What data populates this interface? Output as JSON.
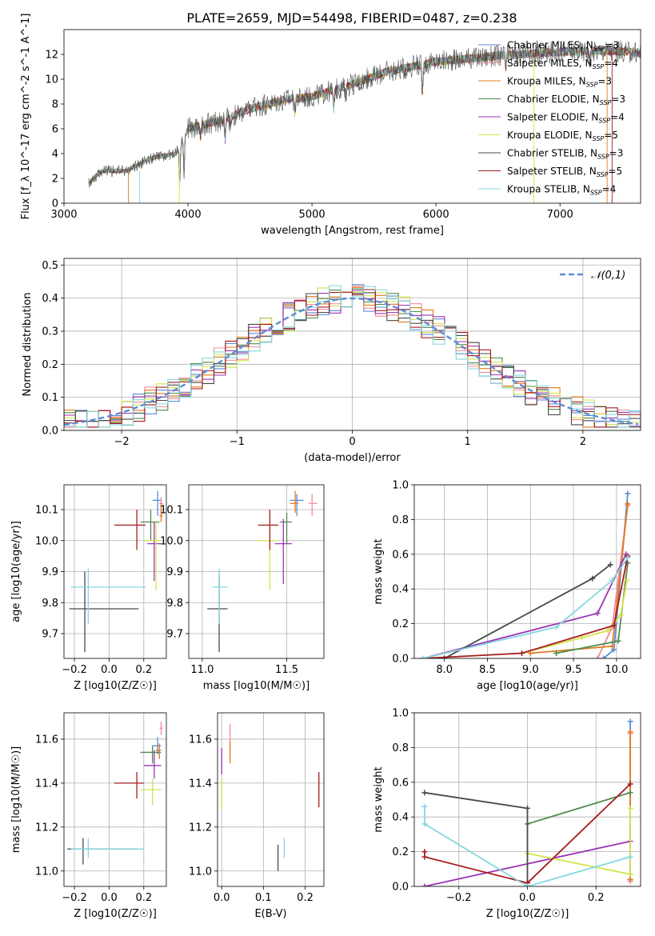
{
  "figure": {
    "title": "PLATE=2659, MJD=54498, FIBERID=0487, z=0.238"
  },
  "series_legend": [
    {
      "name": "Chabrier MILES, N_SSP=3",
      "color": "#5b8bd6"
    },
    {
      "name": "Salpeter MILES, N_SSP=4",
      "color": "#f08c9a"
    },
    {
      "name": "Kroupa MILES, N_SSP=3",
      "color": "#e07b1e"
    },
    {
      "name": "Chabrier ELODIE, N_SSP=3",
      "color": "#4f8a4f"
    },
    {
      "name": "Salpeter ELODIE, N_SSP=4",
      "color": "#9c35b5"
    },
    {
      "name": "Kroupa ELODIE, N_SSP=5",
      "color": "#d4e34c"
    },
    {
      "name": "Chabrier STELIB, N_SSP=3",
      "color": "#4a4a4a"
    },
    {
      "name": "Salpeter STELIB, N_SSP=5",
      "color": "#a61c1c"
    },
    {
      "name": "Kroupa STELIB, N_SSP=4",
      "color": "#86d7e0"
    }
  ],
  "chart_data": [
    {
      "id": "spectrum",
      "type": "line",
      "xlabel": "wavelength [Angstrom, rest frame]",
      "ylabel": "Flux [f_λ 10^-17 erg cm^-2 s^-1 A^-1]",
      "xlim": [
        3000,
        7650
      ],
      "ylim": [
        0,
        14
      ],
      "xticks": [
        "3000",
        "4000",
        "5000",
        "6000",
        "7000"
      ],
      "yticks": [
        "0",
        "2",
        "4",
        "6",
        "8",
        "10",
        "12"
      ],
      "legend_position": "upper right",
      "data_range": [
        3200,
        7700
      ],
      "continuum": [
        [
          3200,
          1.6
        ],
        [
          3300,
          2.6
        ],
        [
          3500,
          2.6
        ],
        [
          3700,
          3.6
        ],
        [
          3900,
          4.0
        ],
        [
          4000,
          6.0
        ],
        [
          4300,
          6.8
        ],
        [
          4500,
          7.6
        ],
        [
          4800,
          8.4
        ],
        [
          5000,
          8.6
        ],
        [
          5300,
          9.5
        ],
        [
          5600,
          10.6
        ],
        [
          6000,
          11.4
        ],
        [
          6500,
          11.9
        ],
        [
          7000,
          12.2
        ],
        [
          7400,
          12.3
        ],
        [
          7700,
          12.1
        ]
      ],
      "absorption_features": [
        [
          3933,
          3.2
        ],
        [
          3968,
          3.0
        ],
        [
          4102,
          1.0
        ],
        [
          4300,
          1.8
        ],
        [
          4340,
          1.0
        ],
        [
          4861,
          1.2
        ],
        [
          5175,
          1.6
        ],
        [
          5270,
          1.0
        ],
        [
          5890,
          2.4
        ],
        [
          6563,
          1.0
        ],
        [
          7240,
          1.0
        ]
      ]
    },
    {
      "id": "residuals",
      "type": "histogram",
      "xlabel": "(data-model)/error",
      "ylabel": "Normed distribution",
      "xlim": [
        -2.5,
        2.5
      ],
      "ylim": [
        0,
        0.52
      ],
      "xticks": [
        "−2",
        "−1",
        "0",
        "1",
        "2"
      ],
      "yticks": [
        "0.0",
        "0.1",
        "0.2",
        "0.3",
        "0.4",
        "0.5"
      ],
      "bin_width": 0.1,
      "reference_curve": {
        "name": "𝒩(0,1)",
        "color": "#5b8bd6"
      },
      "legend_position": "upper right"
    },
    {
      "id": "age_vs_Z",
      "type": "scatter",
      "xlabel": "Z [log10(Z/Z☉)]",
      "ylabel": "age  [log10(age/yr)]",
      "xlim": [
        -0.26,
        0.33
      ],
      "ylim": [
        9.62,
        10.18
      ],
      "xticks": [
        "−0.2",
        "0.0",
        "0.2"
      ],
      "yticks": [
        "9.7",
        "9.8",
        "9.9",
        "10.0",
        "10.1"
      ],
      "points": [
        {
          "x": 0.28,
          "y": 10.13,
          "xerr": [
            0.03,
            0.02
          ],
          "yerr": [
            0.05,
            0.03
          ]
        },
        {
          "x": 0.3,
          "y": 10.12,
          "xerr": [
            0.01,
            0.01
          ],
          "yerr": [
            0.03,
            0.02
          ]
        },
        {
          "x": 0.3,
          "y": 10.08,
          "xerr": [
            0.01,
            0.01
          ],
          "yerr": [
            0.02,
            0.04
          ]
        },
        {
          "x": 0.24,
          "y": 10.06,
          "xerr": [
            0.06,
            0.05
          ],
          "yerr": [
            0.06,
            0.04
          ]
        },
        {
          "x": 0.26,
          "y": 9.99,
          "xerr": [
            0.04,
            0.04
          ],
          "yerr": [
            0.12,
            0.07
          ]
        },
        {
          "x": 0.27,
          "y": 10.0,
          "xerr": [
            0.07,
            0.03
          ],
          "yerr": [
            0.16,
            0.06
          ]
        },
        {
          "x": -0.14,
          "y": 9.78,
          "xerr": [
            0.09,
            0.31
          ],
          "yerr": [
            0.14,
            0.12
          ]
        },
        {
          "x": 0.16,
          "y": 10.05,
          "xerr": [
            0.13,
            0.05
          ],
          "yerr": [
            0.08,
            0.05
          ]
        },
        {
          "x": -0.12,
          "y": 9.85,
          "xerr": [
            0.1,
            0.33
          ],
          "yerr": [
            0.12,
            0.06
          ]
        }
      ]
    },
    {
      "id": "age_vs_mass",
      "type": "scatter",
      "xlabel": "mass [log10(M/M☉)]",
      "ylabel": "",
      "xlim": [
        10.92,
        11.72
      ],
      "ylim": [
        9.62,
        10.18
      ],
      "xticks": [
        "11.0",
        "11.5"
      ],
      "yticks": [
        "9.7",
        "9.8",
        "9.9",
        "10.0",
        "10.1"
      ],
      "points": [
        {
          "x": 11.56,
          "y": 10.13,
          "xerr": [
            0.04,
            0.04
          ],
          "yerr": [
            0.05,
            0.02
          ]
        },
        {
          "x": 11.65,
          "y": 10.12,
          "xerr": [
            0.02,
            0.03
          ],
          "yerr": [
            0.04,
            0.03
          ]
        },
        {
          "x": 11.55,
          "y": 10.12,
          "xerr": [
            0.03,
            0.02
          ],
          "yerr": [
            0.03,
            0.04
          ]
        },
        {
          "x": 11.5,
          "y": 10.06,
          "xerr": [
            0.04,
            0.03
          ],
          "yerr": [
            0.07,
            0.03
          ]
        },
        {
          "x": 11.48,
          "y": 9.99,
          "xerr": [
            0.05,
            0.05
          ],
          "yerr": [
            0.13,
            0.08
          ]
        },
        {
          "x": 11.4,
          "y": 10.0,
          "xerr": [
            0.07,
            0.05
          ],
          "yerr": [
            0.16,
            0.08
          ]
        },
        {
          "x": 11.1,
          "y": 9.78,
          "xerr": [
            0.07,
            0.05
          ],
          "yerr": [
            0.14,
            0.11
          ]
        },
        {
          "x": 11.4,
          "y": 10.05,
          "xerr": [
            0.07,
            0.05
          ],
          "yerr": [
            0.08,
            0.05
          ]
        },
        {
          "x": 11.1,
          "y": 9.85,
          "xerr": [
            0.04,
            0.05
          ],
          "yerr": [
            0.12,
            0.06
          ]
        }
      ]
    },
    {
      "id": "mass_weight_vs_age",
      "type": "line",
      "xlabel": "age  [log10(age/yr)]",
      "ylabel": "mass weight",
      "xlim": [
        7.65,
        10.28
      ],
      "ylim": [
        0,
        1.0
      ],
      "xticks": [
        "8.0",
        "8.5",
        "9.0",
        "9.5",
        "10.0"
      ],
      "yticks": [
        "0.0",
        "0.2",
        "0.4",
        "0.6",
        "0.8",
        "1.0"
      ],
      "series": [
        {
          "values": [
            [
              9.85,
              0.0
            ],
            [
              9.97,
              0.05
            ],
            [
              10.13,
              0.95
            ]
          ]
        },
        {
          "values": [
            [
              9.78,
              0.0
            ],
            [
              9.95,
              0.18
            ],
            [
              10.13,
              0.88
            ]
          ]
        },
        {
          "values": [
            [
              9.0,
              0.03
            ],
            [
              9.95,
              0.07
            ],
            [
              10.13,
              0.89
            ]
          ]
        },
        {
          "values": [
            [
              9.3,
              0.03
            ],
            [
              10.02,
              0.1
            ],
            [
              10.13,
              0.55
            ]
          ]
        },
        {
          "values": [
            [
              7.75,
              0.0
            ],
            [
              9.78,
              0.26
            ],
            [
              10.11,
              0.6
            ]
          ]
        },
        {
          "values": [
            [
              8.9,
              0.03
            ],
            [
              9.6,
              0.12
            ],
            [
              9.9,
              0.16
            ],
            [
              10.05,
              0.25
            ],
            [
              10.12,
              0.45
            ]
          ]
        },
        {
          "values": [
            [
              8.0,
              0.0
            ],
            [
              9.72,
              0.46
            ],
            [
              9.93,
              0.54
            ]
          ]
        },
        {
          "values": [
            [
              7.75,
              0.0
            ],
            [
              8.9,
              0.03
            ],
            [
              9.97,
              0.19
            ],
            [
              10.13,
              0.59
            ]
          ]
        },
        {
          "values": [
            [
              7.75,
              0.0
            ],
            [
              9.3,
              0.18
            ],
            [
              9.95,
              0.45
            ],
            [
              10.13,
              0.58
            ]
          ]
        }
      ]
    },
    {
      "id": "mass_vs_Z",
      "type": "scatter",
      "xlabel": "Z [log10(Z/Z☉)]",
      "ylabel": "mass [log10(M/M☉)]",
      "xlim": [
        -0.26,
        0.33
      ],
      "ylim": [
        10.93,
        11.72
      ],
      "xticks": [
        "−0.2",
        "0.0",
        "0.2"
      ],
      "yticks": [
        "11.0",
        "11.2",
        "11.4",
        "11.6"
      ],
      "points": [
        {
          "x": 0.28,
          "y": 11.57,
          "xerr": [
            0.03,
            0.02
          ],
          "yerr": [
            0.04,
            0.04
          ]
        },
        {
          "x": 0.3,
          "y": 11.65,
          "xerr": [
            0.01,
            0.01
          ],
          "yerr": [
            0.03,
            0.03
          ]
        },
        {
          "x": 0.29,
          "y": 11.55,
          "xerr": [
            0.02,
            0.01
          ],
          "yerr": [
            0.04,
            0.03
          ]
        },
        {
          "x": 0.25,
          "y": 11.54,
          "xerr": [
            0.07,
            0.05
          ],
          "yerr": [
            0.05,
            0.03
          ]
        },
        {
          "x": 0.26,
          "y": 11.48,
          "xerr": [
            0.06,
            0.04
          ],
          "yerr": [
            0.06,
            0.07
          ]
        },
        {
          "x": 0.25,
          "y": 11.37,
          "xerr": [
            0.07,
            0.05
          ],
          "yerr": [
            0.07,
            0.05
          ]
        },
        {
          "x": -0.15,
          "y": 11.1,
          "xerr": [
            0.09,
            0.31
          ],
          "yerr": [
            0.07,
            0.05
          ]
        },
        {
          "x": 0.16,
          "y": 11.4,
          "xerr": [
            0.13,
            0.04
          ],
          "yerr": [
            0.07,
            0.05
          ]
        },
        {
          "x": -0.12,
          "y": 11.1,
          "xerr": [
            0.1,
            0.32
          ],
          "yerr": [
            0.04,
            0.05
          ]
        }
      ]
    },
    {
      "id": "mass_vs_EBV",
      "type": "scatter",
      "xlabel": "E(B-V)",
      "ylabel": "",
      "xlim": [
        -0.01,
        0.245
      ],
      "ylim": [
        10.93,
        11.72
      ],
      "xticks": [
        "0.0",
        "0.1",
        "0.2"
      ],
      "yticks": [
        "11.0",
        "11.2",
        "11.4",
        "11.6"
      ],
      "points": [
        {
          "x": 0.02,
          "y": 11.61,
          "xerr": [
            0,
            0
          ],
          "yerr": [
            0.06,
            0.06
          ]
        },
        {
          "x": 0.02,
          "y": 11.55,
          "xerr": [
            0,
            0
          ],
          "yerr": [
            0.06,
            0.04
          ]
        },
        {
          "x": 0.0,
          "y": 11.5,
          "xerr": [
            0,
            0
          ],
          "yerr": [
            0.06,
            0.06
          ]
        },
        {
          "x": 0.0,
          "y": 11.36,
          "xerr": [
            0,
            0
          ],
          "yerr": [
            0.08,
            0.06
          ]
        },
        {
          "x": 0.135,
          "y": 11.07,
          "xerr": [
            0,
            0
          ],
          "yerr": [
            0.07,
            0.05
          ]
        },
        {
          "x": 0.233,
          "y": 11.37,
          "xerr": [
            0,
            0
          ],
          "yerr": [
            0.08,
            0.08
          ]
        },
        {
          "x": 0.15,
          "y": 11.1,
          "xerr": [
            0,
            0
          ],
          "yerr": [
            0.04,
            0.05
          ]
        }
      ]
    },
    {
      "id": "mass_weight_vs_Z",
      "type": "line",
      "xlabel": "Z [log10(Z/Z☉)]",
      "ylabel": "mass weight",
      "xlim": [
        -0.33,
        0.33
      ],
      "ylim": [
        0,
        1.0
      ],
      "xticks": [
        "−0.2",
        "0.0",
        "0.2"
      ],
      "yticks": [
        "0.0",
        "0.2",
        "0.4",
        "0.6",
        "0.8",
        "1.0"
      ],
      "series": [
        {
          "values": [
            [
              0.3,
              0.04
            ],
            [
              0.3,
              0.95
            ]
          ]
        },
        {
          "values": [
            [
              0.3,
              0.03
            ],
            [
              0.3,
              0.88
            ]
          ]
        },
        {
          "values": [
            [
              0.3,
              0.04
            ],
            [
              0.3,
              0.89
            ]
          ]
        },
        {
          "values": [
            [
              0.0,
              0.36
            ],
            [
              0.3,
              0.54
            ]
          ]
        },
        {
          "values": [
            [
              -0.3,
              0.0
            ],
            [
              0.3,
              0.26
            ]
          ]
        },
        {
          "values": [
            [
              0.0,
              0.19
            ],
            [
              0.3,
              0.07
            ],
            [
              0.3,
              0.45
            ]
          ]
        },
        {
          "values": [
            [
              -0.3,
              0.54
            ],
            [
              0.0,
              0.45
            ],
            [
              0.0,
              0.0
            ]
          ]
        },
        {
          "values": [
            [
              -0.3,
              0.2
            ],
            [
              -0.3,
              0.17
            ],
            [
              0.0,
              0.02
            ],
            [
              0.3,
              0.59
            ]
          ]
        },
        {
          "values": [
            [
              -0.3,
              0.46
            ],
            [
              -0.3,
              0.36
            ],
            [
              0.0,
              0.0
            ],
            [
              0.3,
              0.17
            ]
          ]
        }
      ]
    }
  ]
}
